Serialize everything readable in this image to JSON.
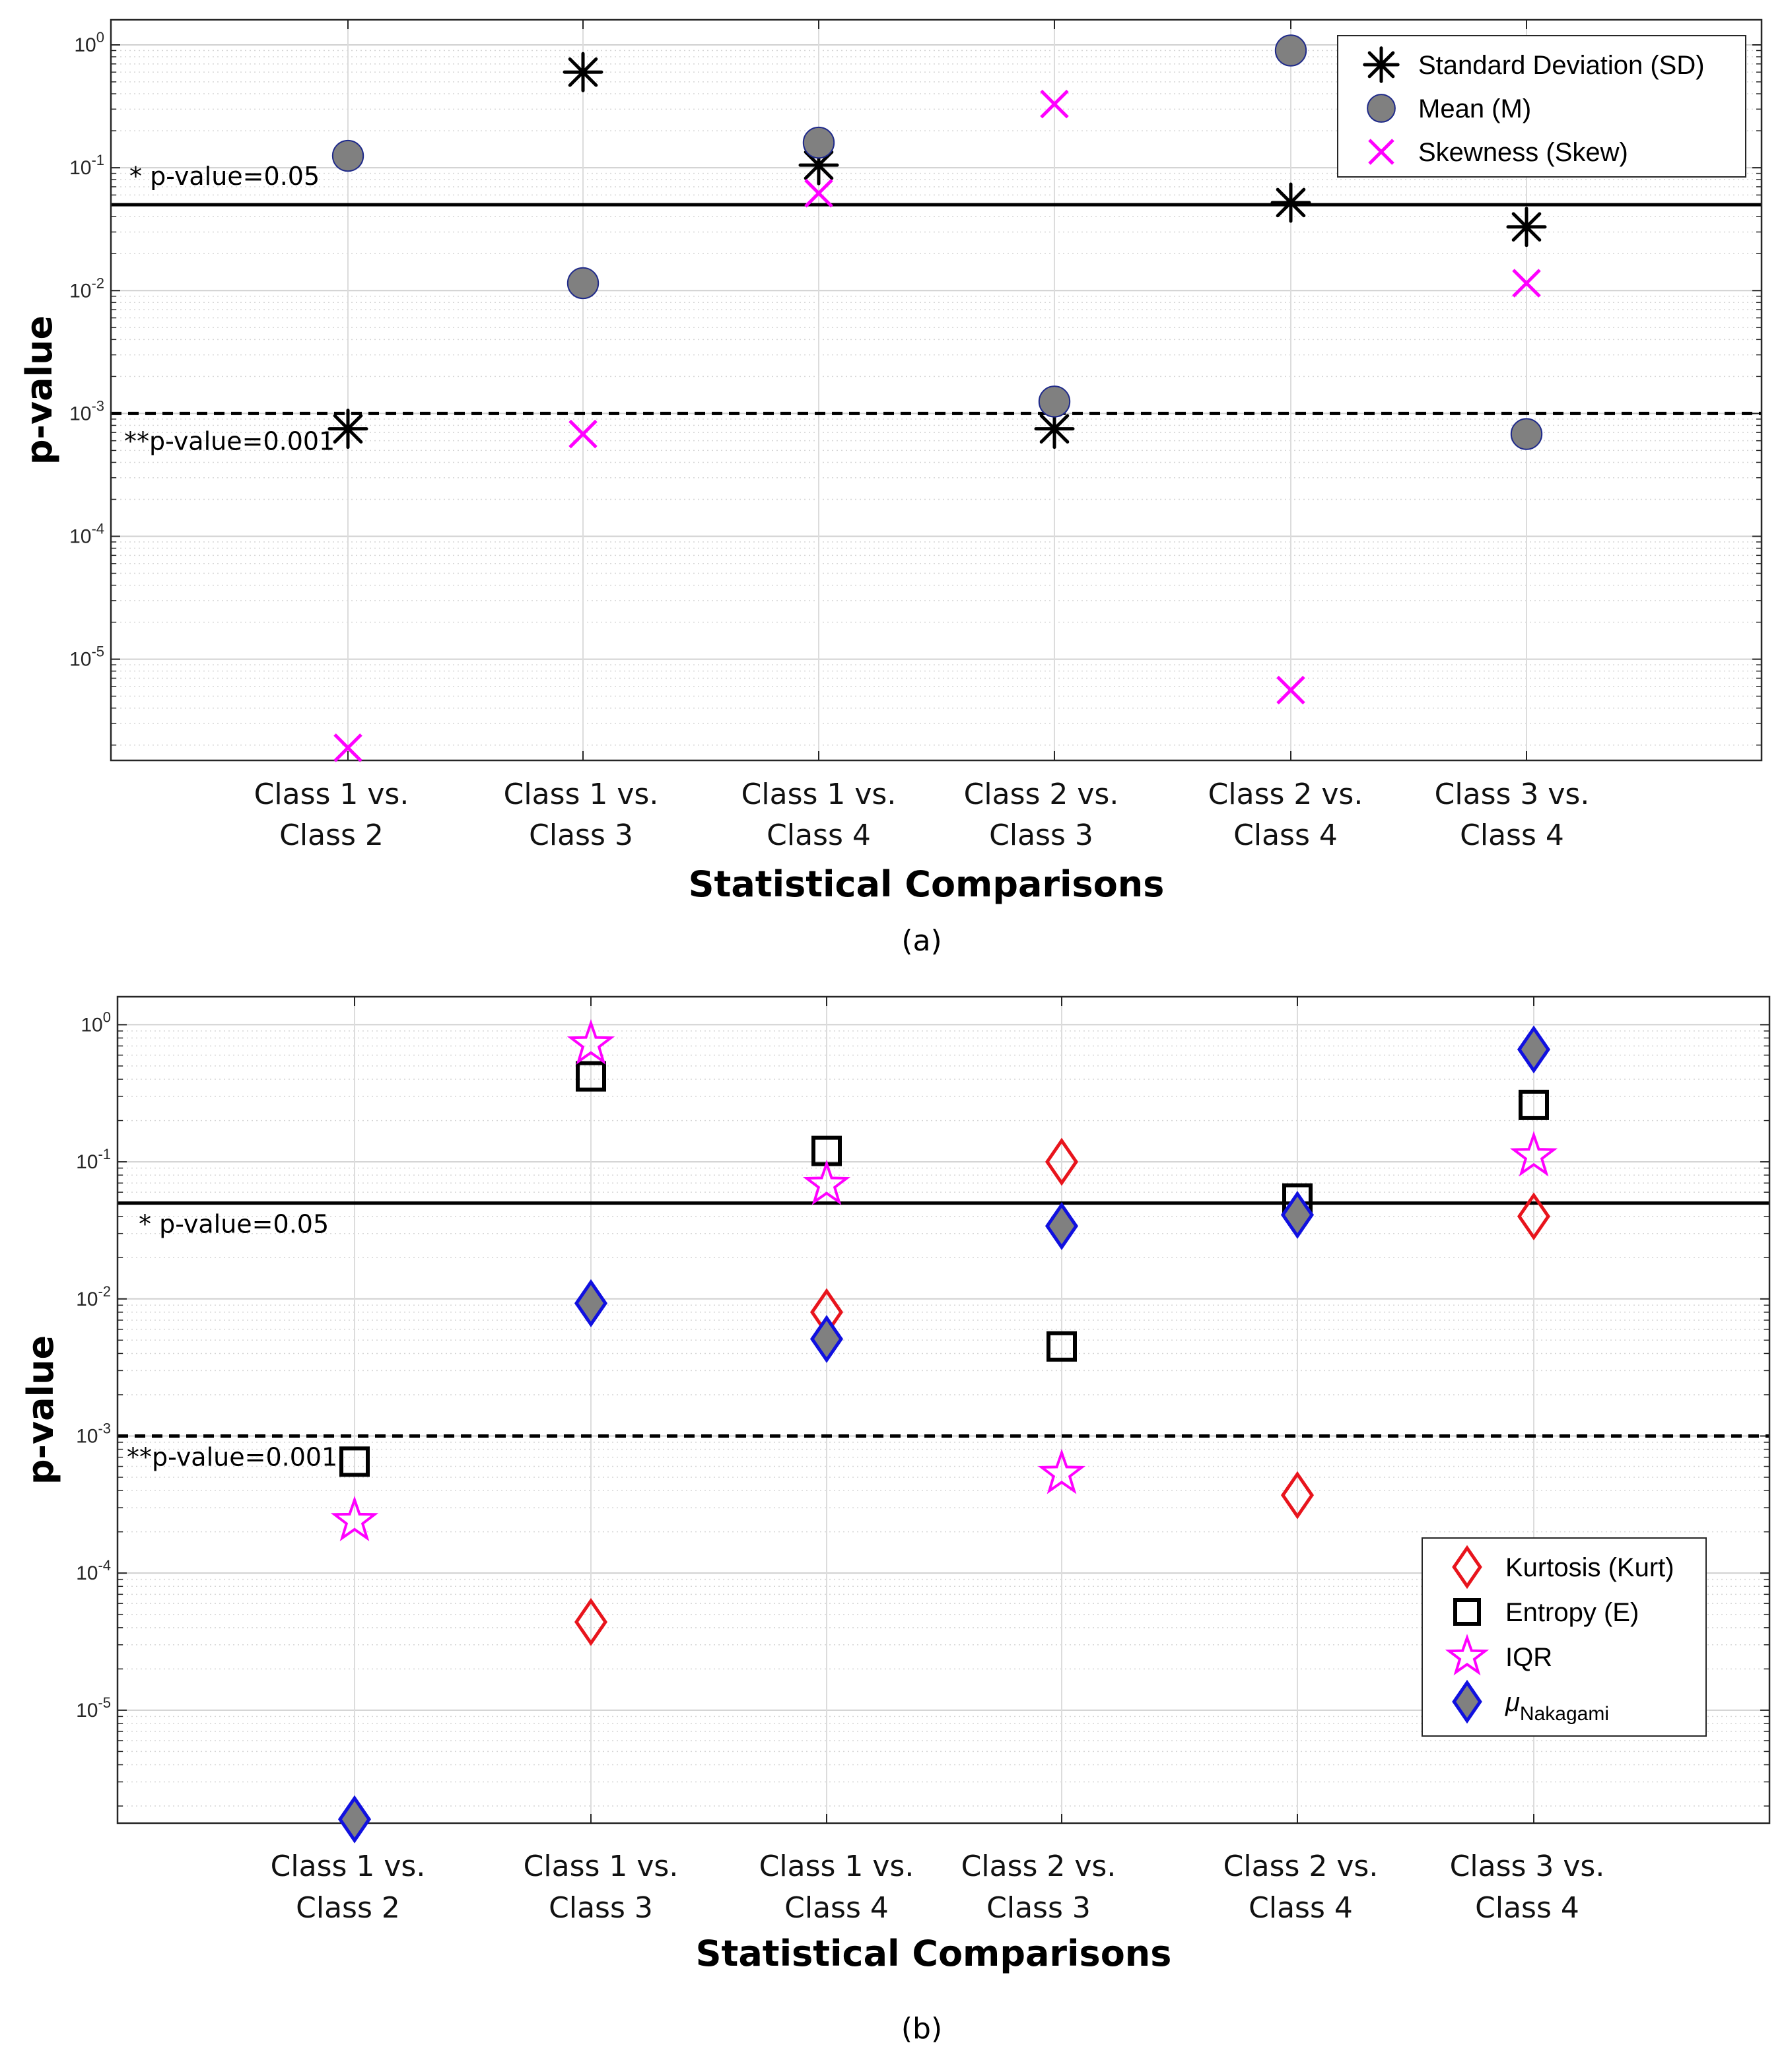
{
  "chart_data": [
    {
      "type": "scatter",
      "yscale": "log",
      "ylim": [
        1.5e-06,
        1.6
      ],
      "ylabel": "p-value",
      "xlabel": "Statistical Comparisons",
      "caption": "(a)",
      "categories": [
        [
          "Class 1 vs.",
          "Class 2"
        ],
        [
          "Class 1 vs.",
          "Class 3"
        ],
        [
          "Class 1 vs.",
          "Class 4"
        ],
        [
          "Class 2 vs.",
          "Class 3"
        ],
        [
          "Class 2 vs.",
          "Class 4"
        ],
        [
          "Class 3 vs.",
          "Class 4"
        ]
      ],
      "yticks": [
        {
          "base": "10",
          "exp": "0"
        },
        {
          "base": "10",
          "exp": "-1"
        },
        {
          "base": "10",
          "exp": "-2"
        },
        {
          "base": "10",
          "exp": "-3"
        },
        {
          "base": "10",
          "exp": "-4"
        },
        {
          "base": "10",
          "exp": "-5"
        }
      ],
      "reference_lines": [
        {
          "value": 0.05,
          "label": "* p-value=0.05",
          "style": "solid"
        },
        {
          "value": 0.001,
          "label": "**p-value=0.001",
          "style": "dashed"
        }
      ],
      "legend_position": "top-right",
      "series": [
        {
          "name": "Standard Deviation (SD)",
          "marker": "asterisk",
          "color": "#000000",
          "values": [
            0.00075,
            0.6,
            0.105,
            0.00075,
            0.052,
            0.033
          ]
        },
        {
          "name": "Mean (M)",
          "marker": "circle",
          "color": "#808080",
          "edge": "#1f2a8a",
          "values": [
            0.125,
            0.0115,
            0.16,
            0.00125,
            0.9,
            0.00068
          ]
        },
        {
          "name": "Skewness (Skew)",
          "marker": "x",
          "color": "#ff00ff",
          "values": [
            1.9e-06,
            0.00068,
            0.062,
            0.33,
            5.6e-06,
            0.0115
          ]
        }
      ]
    },
    {
      "type": "scatter",
      "yscale": "log",
      "ylim": [
        1.5e-06,
        1.6
      ],
      "ylabel": "p-value",
      "xlabel": "Statistical Comparisons",
      "caption": "(b)",
      "categories": [
        [
          "Class 1 vs.",
          "Class 2"
        ],
        [
          "Class 1 vs.",
          "Class 3"
        ],
        [
          "Class 1 vs.",
          "Class 4"
        ],
        [
          "Class 2 vs.",
          "Class 3"
        ],
        [
          "Class 2 vs.",
          "Class 4"
        ],
        [
          "Class 3 vs.",
          "Class 4"
        ]
      ],
      "yticks": [
        {
          "base": "10",
          "exp": "0"
        },
        {
          "base": "10",
          "exp": "-1"
        },
        {
          "base": "10",
          "exp": "-2"
        },
        {
          "base": "10",
          "exp": "-3"
        },
        {
          "base": "10",
          "exp": "-4"
        },
        {
          "base": "10",
          "exp": "-5"
        }
      ],
      "reference_lines": [
        {
          "value": 0.05,
          "label": "* p-value=0.05",
          "style": "solid"
        },
        {
          "value": 0.001,
          "label": "**p-value=0.001",
          "style": "dashed"
        }
      ],
      "legend_position": "bottom-right",
      "series": [
        {
          "name": "Kurtosis (Kurt)",
          "marker": "diamond-open",
          "color": "#e8141c",
          "values": [
            null,
            4.4e-05,
            0.008,
            0.1,
            0.00037,
            0.04
          ]
        },
        {
          "name": "Entropy (E)",
          "marker": "square-open",
          "color": "#000000",
          "values": [
            0.00065,
            0.42,
            0.12,
            0.0045,
            0.054,
            0.26
          ]
        },
        {
          "name": "IQR",
          "marker": "star",
          "color": "#ff00ff",
          "values": [
            0.00024,
            0.72,
            0.068,
            0.00053,
            null,
            0.11
          ]
        },
        {
          "name": "μ",
          "name_subscript": "Nakagami",
          "marker": "diamond-filled",
          "color": "#808080",
          "edge": "#1010e0",
          "values": [
            1.6e-06,
            0.0093,
            0.0051,
            0.034,
            0.041,
            0.66
          ]
        }
      ]
    }
  ]
}
